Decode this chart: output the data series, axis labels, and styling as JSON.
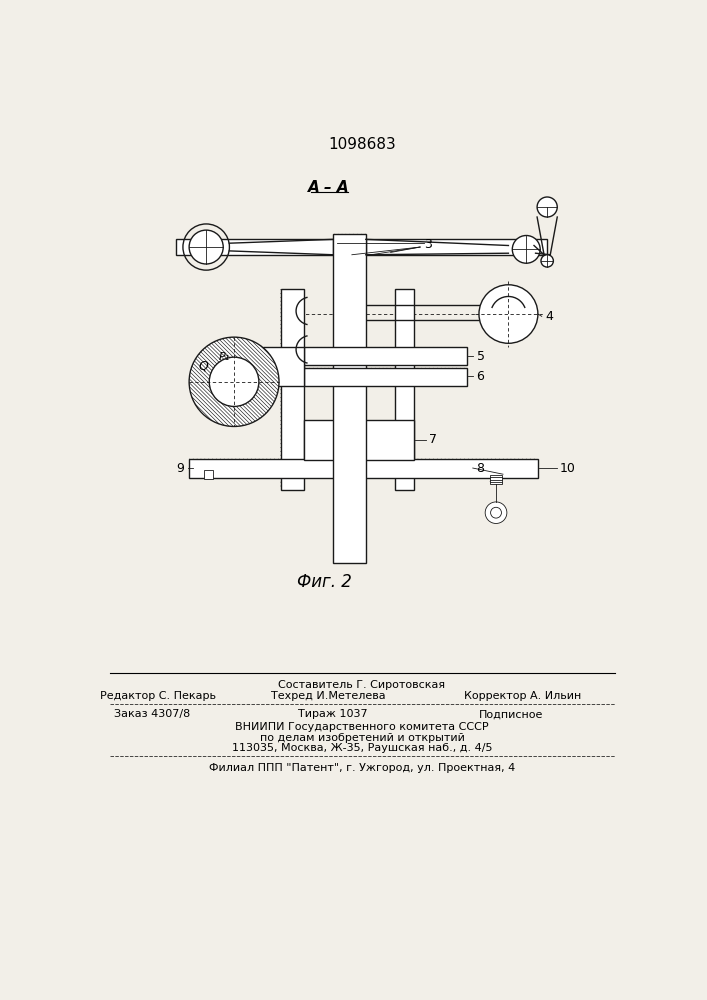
{
  "patent_number": "1098683",
  "background_color": "#f2efe8",
  "draw_color": "#1a1a1a",
  "section_label": "A–A",
  "fig_label": "Фиг. 2",
  "footer_composit": "Составитель Г. Сиротовская",
  "footer_line1_left": "Редактор С. Пекарь",
  "footer_line1_center": "Техред И.Метелева",
  "footer_line1_right": "Корректор А. Ильин",
  "footer_line2_left": "Заказ 4307/8",
  "footer_line2_center": "Тираж 1037",
  "footer_line2_right": "Подписное",
  "footer_line3": "ВНИИПИ Государственного комитета СССР",
  "footer_line4": "по делам изобретений и открытий",
  "footer_line5": "113035, Москва, Ж-35, Раушская наб., д. 4/5",
  "footer_line6": "Филиал ППП \"Патент\", г. Ужгород, ул. Проектная, 4"
}
